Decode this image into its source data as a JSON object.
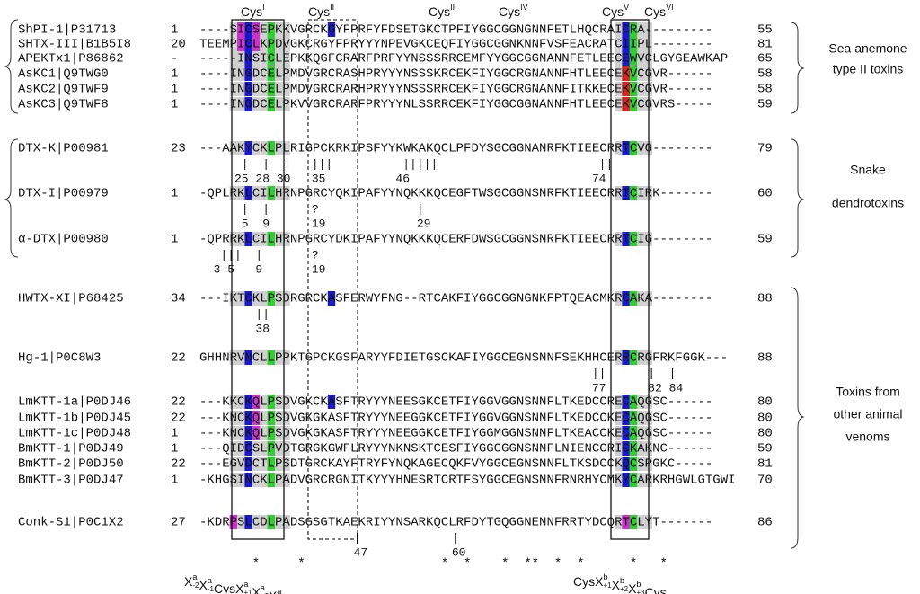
{
  "cys_labels": [
    {
      "text": "Cys",
      "numeral": "I"
    },
    {
      "text": "Cys",
      "numeral": "II"
    },
    {
      "text": "Cys",
      "numeral": "III"
    },
    {
      "text": "Cys",
      "numeral": "IV"
    },
    {
      "text": "Cys",
      "numeral": "V"
    },
    {
      "text": "Cys",
      "numeral": "VI"
    }
  ],
  "rows": [
    {
      "name": "ShPI-1|P31713",
      "start": "1",
      "sequence": "----SICSEPKKVGRCKGYFPRFYFDSETGKCTPFIYGGCGGNGNNFETLHQCRAICRA---------",
      "end": "55"
    },
    {
      "name": "SHTX-III|B1B5I8",
      "start": "20",
      "sequence": "TEEMPICLKPDVGKCRGYFPRYYYNPEVGKCEQFIYGGCGGNKNNFVSFEACRATCIIPL--------",
      "end": "81"
    },
    {
      "name": "APEKTx1|P86862",
      "start": "-",
      "sequence": "-----INSICLEPKKQGFCRARFPRFYYNSSSRRCEMFYYGGCGGNANNFETLEECEWVCLGYGEAWKAP",
      "end": "65"
    },
    {
      "name": "AsKC1|Q9TWG0",
      "start": "1",
      "sequence": "----INGDCELPMDVGRCRASHPRYYYNSSSKRCEKFIYGGCRGNANNFHTLEECEKVCGVR------",
      "end": "58"
    },
    {
      "name": "AsKC2|Q9TWF9",
      "start": "1",
      "sequence": "----INGDCELPMDVGRCRARHPRYYYNSSSRRCEKFIYGGCRGNANNFITKKECEKVCGVR------",
      "end": "58"
    },
    {
      "name": "AsKC3|Q9TWF8",
      "start": "1",
      "sequence": "----INGDCELPKVVGRCRARFPRYYYNLSSRRCEKFIYGGCGGNANNFHTLEECEKVCGVRS-----",
      "end": "59"
    },
    {
      "name": "DTX-K|P00981",
      "start": "23",
      "sequence": "---AAKYCKLPLRIGPCKRKIPSFYYKWKAKQCLPFDYSGCGGNANRFKTIEECRRTCVG--------",
      "end": "79",
      "ticks": "      |  |  |   |||          |||||                       ||",
      "positions": "     25 28 30   35          46                          74"
    },
    {
      "name": "DTX-I|P00979",
      "start": "1",
      "sequence": "-QPLRKLCILHRNPGRCYQKIPAFYYNQKKKQCEGFTWSGCGGNSNRFKTIEECRRTCIRK-------",
      "end": "60",
      "ticks": "      |  |      ?              |",
      "positions": "      5  9      19             29"
    },
    {
      "name": "α-DTX|P00980",
      "start": "1",
      "sequence": "-QPRRKLCILHRNPGRCYDKIPAFYYNQKKKQCERFDWSGCGGNSNRFKTIEECRRTCIG--------",
      "end": "59",
      "ticks": "  ||||  |       ?",
      "positions": "  3 5   9       19"
    },
    {
      "name": "HWTX-XI|P68425",
      "start": "34",
      "sequence": "---IKTCKLPSDRGRCKASFERWYFNG--RTCAKFIYGGCGGNGNKFPTQEACMKRCAKA--------",
      "end": "88",
      "ticks": "        ||",
      "positions": "        38"
    },
    {
      "name": "Hg-1|P0C8W3",
      "start": "22",
      "sequence": "GHHNRVNCLLPPKTGPCKGSFARYYFDIETGSCKAFIYGGCEGNSNNFSEKHHCERRCRGFRKFGGK---",
      "end": "88",
      "ticks": "                                                        ||      |  |",
      "positions": "                                                        77      82 84"
    },
    {
      "name": "LmKTT-1a|P0DJ46",
      "start": "22",
      "sequence": "---KKCKQLPSDVGKCKASFTRYYYNEESGKCETFIYGGVGGNSNNFLTKEDCCRECAQGSC------",
      "end": "80"
    },
    {
      "name": "LmKTT-1b|P0DJ45",
      "start": "22",
      "sequence": "---KNCKQLPSDVGKGKASFTRYYYNEEGGKCETFIYGGVGGNSNNFLTKEDCCKECAQGSC------",
      "end": "80"
    },
    {
      "name": "LmKTT-1c|P0DJ48",
      "start": "1",
      "sequence": "---KNCKQLPSDVGKGKASFTRYYYNEEGGKCETFIYGGMGGNSNNFLTKEACCKECAQGSC------",
      "end": "80"
    },
    {
      "name": "BmKTT-1|P0DJ49",
      "start": "1",
      "sequence": "---QIDCSLPVDTGRGKGWFLRYYYNKNSKTCESFIYGGCGGNSNNFLNIENCCRICKAKNC------",
      "end": "59"
    },
    {
      "name": "BmKTT-2|P0DJ50",
      "start": "22",
      "sequence": "---EGVDCTLPSDTGRCKAYFTRYFYNQKAGECQKFVYGGCEGNSNNFLTKSDCCKQCSPGKC-----",
      "end": "81"
    },
    {
      "name": "BmKTT-3|P0DJ47",
      "start": "1",
      "sequence": "-KHGSINCKLPADVGRCRGNITKYYYHNESRTCRTFSYGGCEGNSNNFRNRHYCMKYCARKRHGWLGTGWI",
      "end": "70"
    },
    {
      "name": "Conk-S1|P0C1X2",
      "start": "27",
      "sequence": "-KDRPSLCDLPADSGSGTKAEKRIYYNSARKQCLRFDYTGQGGNENNFRRTYDCQRTCLYT-------",
      "end": "86",
      "ticks": "                      |             |",
      "positions": "                      47            60"
    }
  ],
  "stars": "       *     *                  *  *    *  **  *  *      *   *",
  "consensus": [
    {
      "segments": [
        {
          "base": "X",
          "sup": "a",
          "sub": "-2"
        },
        {
          "base": "X",
          "sup": "a",
          "sub": "-1"
        },
        {
          "base": "CysX",
          "sup": "a",
          "sub": "+1"
        },
        {
          "base": "X",
          "sup": "a",
          "sub": "+2"
        },
        {
          "base": "X",
          "sup": "a",
          "sub": "+3"
        }
      ]
    },
    {
      "segments": [
        {
          "base": "CysX",
          "sup": "b",
          "sub": "+1"
        },
        {
          "base": "X",
          "sup": "b",
          "sub": "+2"
        },
        {
          "base": "X",
          "sup": "b",
          "sub": "+3"
        },
        {
          "base": "Cys",
          "sup": "",
          "sub": ""
        }
      ]
    }
  ],
  "groups": [
    {
      "lines": [
        "Sea anemone",
        "type II toxins"
      ]
    },
    {
      "lines": [
        "Snake",
        "dendrotoxins"
      ]
    },
    {
      "lines": [
        "Toxins from",
        "other animal",
        "venoms"
      ]
    }
  ]
}
